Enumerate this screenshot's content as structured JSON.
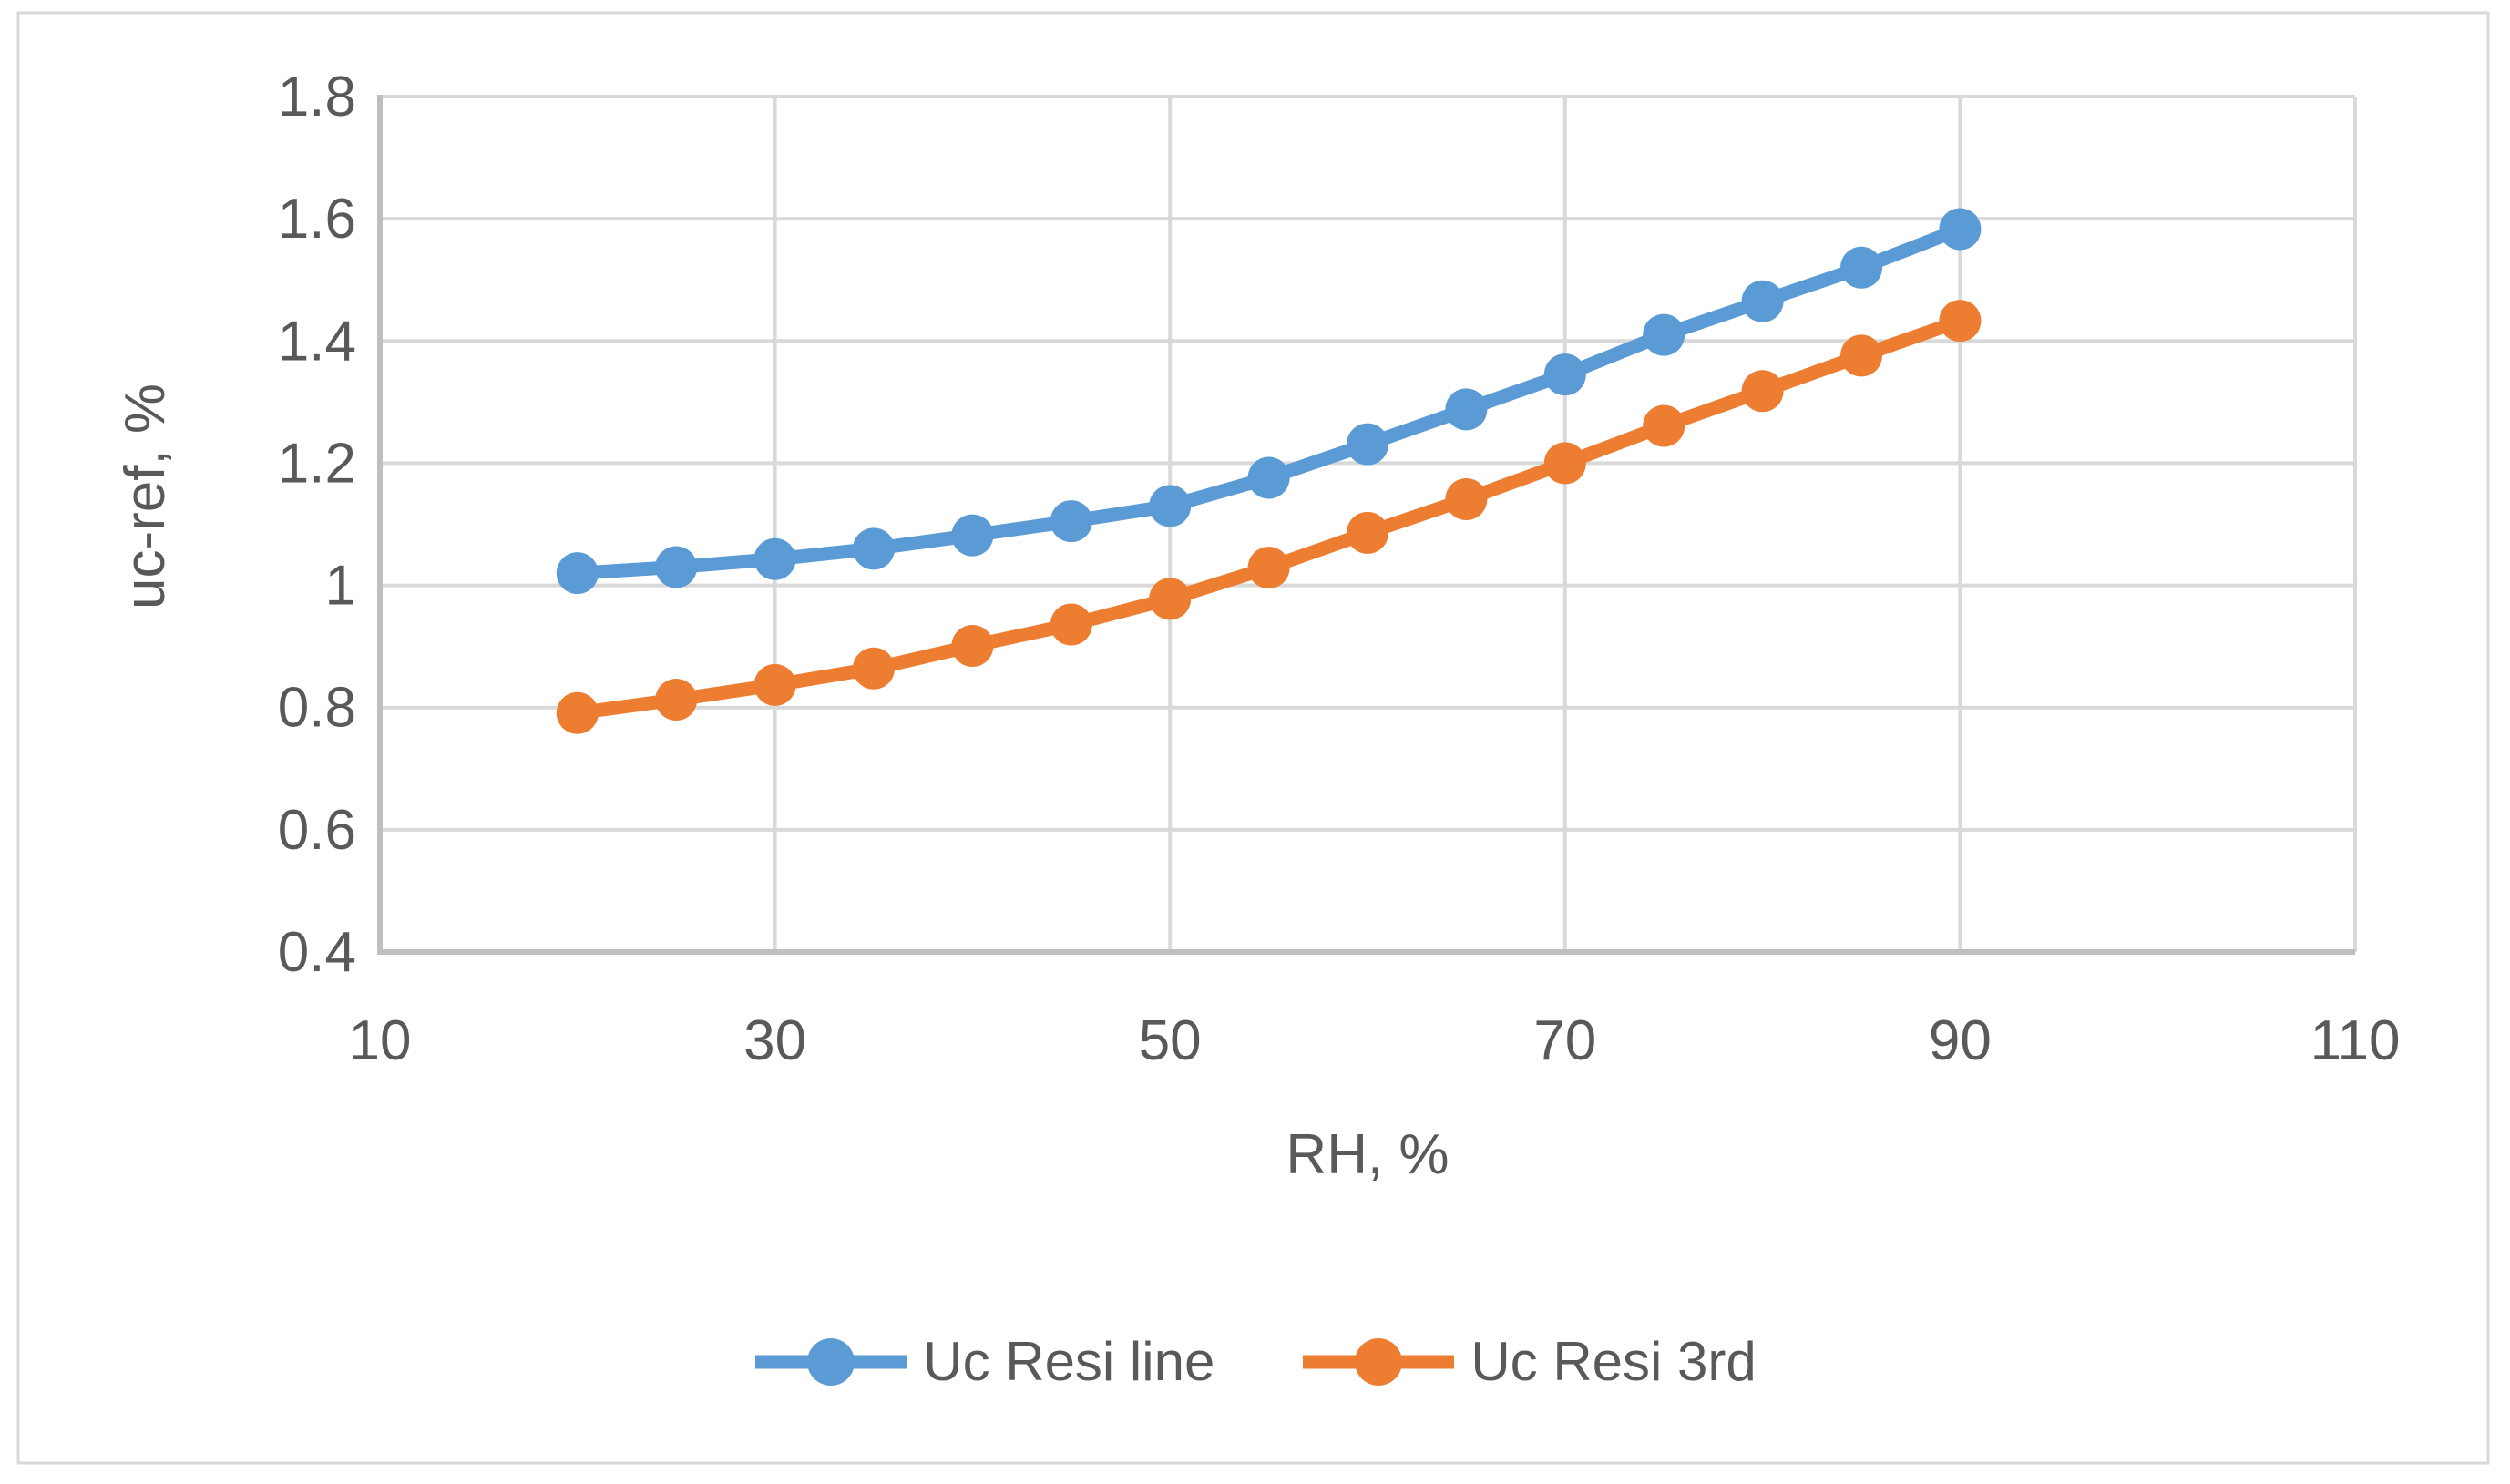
{
  "figure": {
    "background": "#ffffff",
    "border_color": "#d9d9d9",
    "grid_color": "#d9d9d9",
    "axis_line_color": "#bfbfbf",
    "text_color": "#595959"
  },
  "chart_data": {
    "type": "line",
    "title": "",
    "xlabel": "RH, %",
    "ylabel": "uc-ref, %",
    "x": [
      20,
      25,
      30,
      35,
      40,
      45,
      50,
      55,
      60,
      65,
      70,
      75,
      80,
      85,
      90
    ],
    "series": [
      {
        "name": "Uc Resi line",
        "color": "#5b9bd5",
        "values": [
          1.02,
          1.03,
          1.043,
          1.06,
          1.082,
          1.105,
          1.13,
          1.176,
          1.231,
          1.288,
          1.345,
          1.41,
          1.465,
          1.52,
          1.583
        ]
      },
      {
        "name": "Uc Resi 3rd",
        "color": "#ed7d31",
        "values": [
          0.791,
          0.813,
          0.837,
          0.864,
          0.901,
          0.936,
          0.978,
          1.029,
          1.086,
          1.141,
          1.2,
          1.261,
          1.318,
          1.376,
          1.433
        ]
      }
    ],
    "xlim": [
      10,
      110
    ],
    "ylim": [
      0.4,
      1.8
    ],
    "xticks": [
      10,
      30,
      50,
      70,
      90,
      110
    ],
    "yticks": [
      0.4,
      0.6,
      0.8,
      1,
      1.2,
      1.4,
      1.6,
      1.8
    ],
    "grid": true,
    "legend_position": "bottom"
  }
}
